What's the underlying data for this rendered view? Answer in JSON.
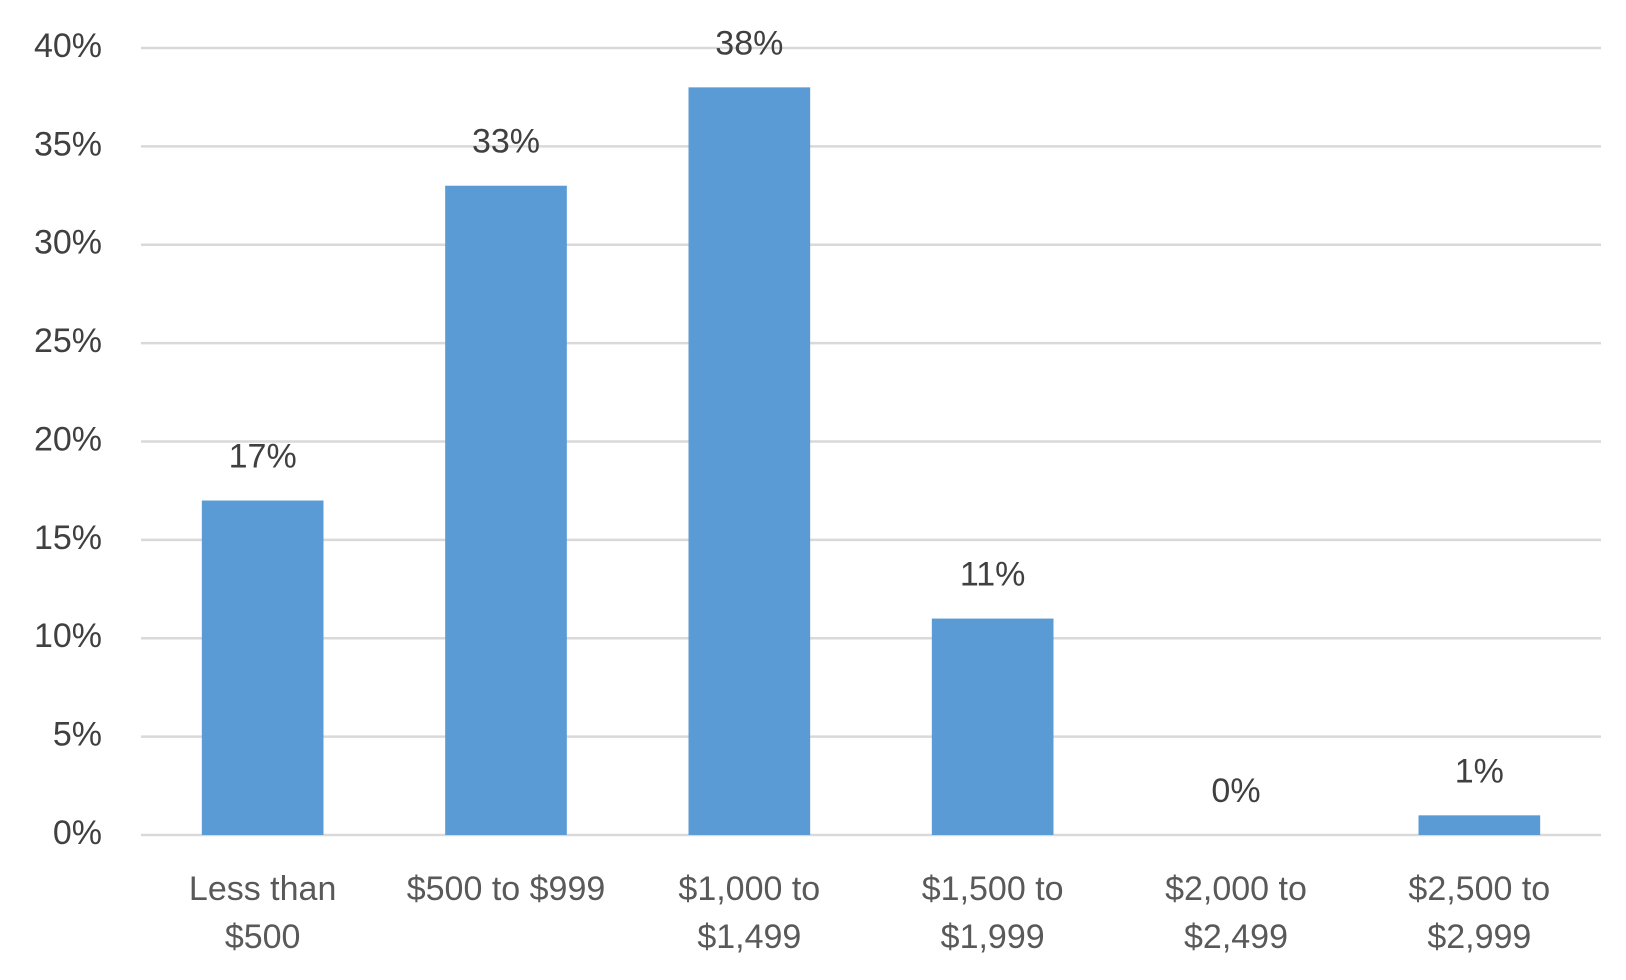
{
  "chart_data": {
    "type": "bar",
    "categories": [
      "Less than $500",
      "$500 to $999",
      "$1,000 to $1,499",
      "$1,500 to $1,999",
      "$2,000 to $2,499",
      "$2,500 to $2,999"
    ],
    "values": [
      17,
      33,
      38,
      11,
      0,
      1
    ],
    "value_labels": [
      "17%",
      "33%",
      "38%",
      "11%",
      "0%",
      "1%"
    ],
    "color": "#5b9bd5",
    "ylim": [
      0,
      40
    ],
    "yticks": [
      {
        "value": 0,
        "label": "0%"
      },
      {
        "value": 5,
        "label": "5%"
      },
      {
        "value": 10,
        "label": "10%"
      },
      {
        "value": 15,
        "label": "15%"
      },
      {
        "value": 20,
        "label": "20%"
      },
      {
        "value": 25,
        "label": "25%"
      },
      {
        "value": 30,
        "label": "30%"
      },
      {
        "value": 35,
        "label": "35%"
      },
      {
        "value": 40,
        "label": "40%"
      }
    ],
    "grid": true
  }
}
